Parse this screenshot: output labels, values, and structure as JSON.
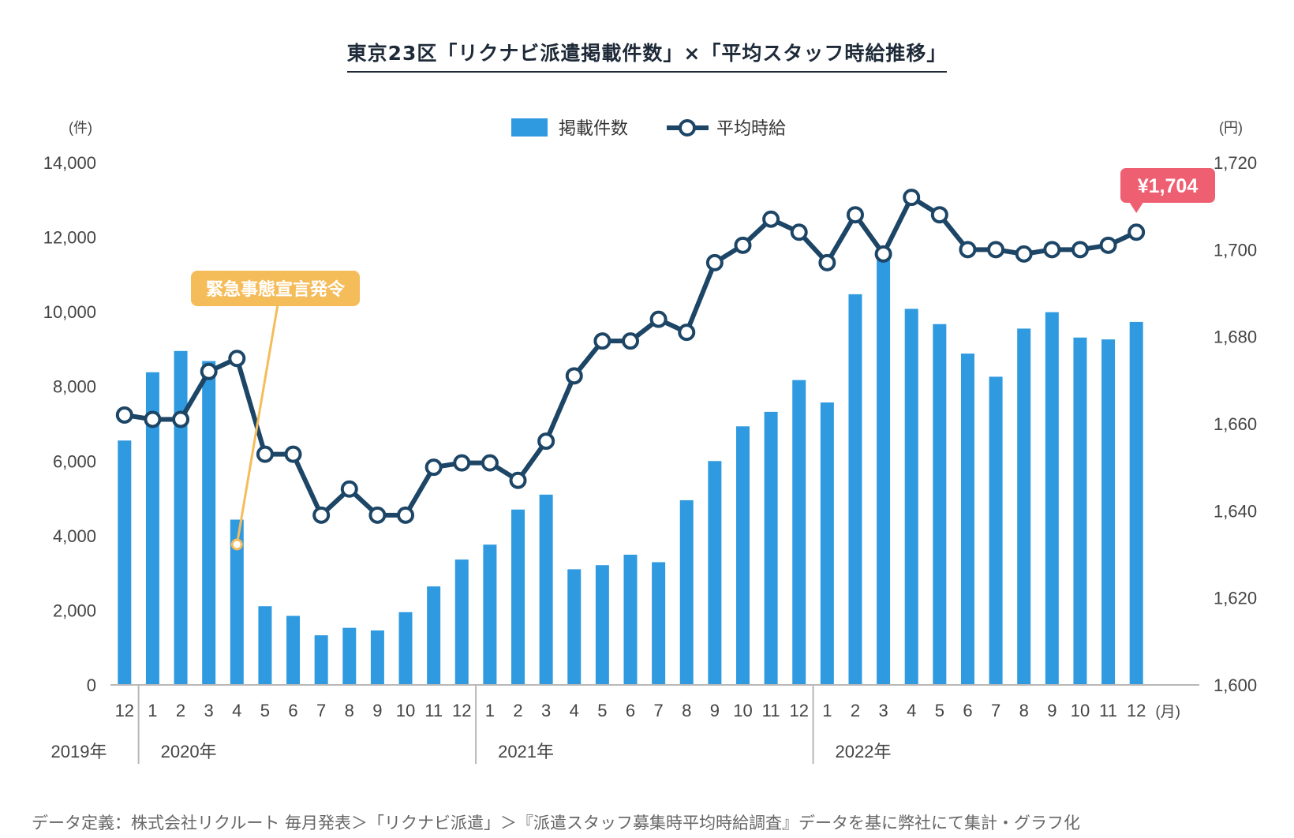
{
  "title": "東京23区「リクナビ派遣掲載件数」×「平均スタッフ時給推移」",
  "footer": "データ定義：株式会社リクルート 毎月発表＞「リクナビ派遣」＞『派遣スタッフ募集時平均時給調査』データを基に弊社にて集計・グラフ化",
  "colors": {
    "bar": "#2f9ae0",
    "line": "#1c4566",
    "callout": "#f5bc5a",
    "highlight": "#ee5f72"
  },
  "chart_data": {
    "type": "bar+line",
    "categories": [
      "12",
      "1",
      "2",
      "3",
      "4",
      "5",
      "6",
      "7",
      "8",
      "9",
      "10",
      "11",
      "12",
      "1",
      "2",
      "3",
      "4",
      "5",
      "6",
      "7",
      "8",
      "9",
      "10",
      "11",
      "12",
      "1",
      "2",
      "3",
      "4",
      "5",
      "6",
      "7",
      "8",
      "9",
      "10",
      "11",
      "12"
    ],
    "year_labels": [
      {
        "label": "2019年",
        "index": 0
      },
      {
        "label": "2020年",
        "index": 1
      },
      {
        "label": "2021年",
        "index": 13
      },
      {
        "label": "2022年",
        "index": 25
      }
    ],
    "month_unit": "(月)",
    "series": [
      {
        "name": "掲載件数",
        "type": "bar",
        "axis": "left",
        "values": [
          6550,
          8380,
          8950,
          8680,
          4430,
          2110,
          1850,
          1330,
          1530,
          1460,
          1950,
          2640,
          3360,
          3760,
          4700,
          5100,
          3100,
          3210,
          3490,
          3290,
          4950,
          6000,
          6930,
          7320,
          8170,
          7570,
          10470,
          11560,
          10080,
          9670,
          8880,
          8260,
          9550,
          9990,
          9310,
          9260,
          9730
        ]
      },
      {
        "name": "平均時給",
        "type": "line",
        "axis": "right",
        "values": [
          1662,
          1661,
          1661,
          1672,
          1675,
          1653,
          1653,
          1639,
          1645,
          1639,
          1639,
          1650,
          1651,
          1651,
          1647,
          1656,
          1671,
          1679,
          1679,
          1684,
          1681,
          1697,
          1701,
          1707,
          1704,
          1697,
          1708,
          1699,
          1712,
          1708,
          1700,
          1700,
          1699,
          1700,
          1700,
          1701,
          1704
        ]
      }
    ],
    "left_axis": {
      "unit": "(件)",
      "ylim": [
        0,
        14000
      ],
      "ticks": [
        "0",
        "2,000",
        "4,000",
        "6,000",
        "8,000",
        "10,000",
        "12,000",
        "14,000"
      ]
    },
    "right_axis": {
      "unit": "(円)",
      "ylim": [
        1600,
        1720
      ],
      "ticks": [
        "1,600",
        "1,620",
        "1,640",
        "1,660",
        "1,680",
        "1,700",
        "1,720"
      ]
    },
    "legend_placement": "top-center",
    "grid": false,
    "annotations": [
      {
        "text": "緊急事態宣言発令",
        "index": 4,
        "series": "掲載件数"
      },
      {
        "text": "¥1,704",
        "index": 36,
        "series": "平均時給"
      }
    ]
  }
}
